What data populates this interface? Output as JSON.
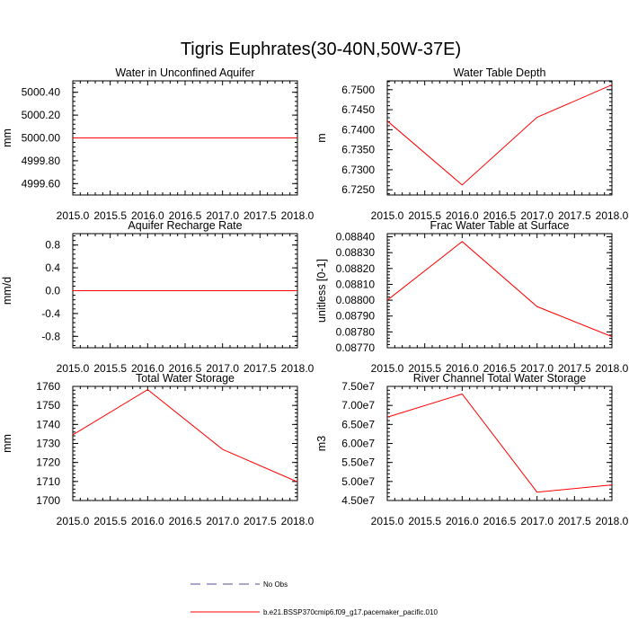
{
  "title": "Tigris Euphrates(30-40N,50W-37E)",
  "chart_data": [
    {
      "type": "line",
      "title": "Water in Unconfined Aquifer",
      "ylabel": "mm",
      "x": [
        2015,
        2016,
        2017,
        2018
      ],
      "series": [
        {
          "name": "b.e21.BSSP370cmip6.f09_g17.pacemaker_pacific.010",
          "values": [
            5000,
            5000,
            5000,
            5000
          ]
        }
      ],
      "xlim": [
        2015,
        2018
      ],
      "ylim": [
        4999.5,
        5000.5
      ],
      "xticks": [
        "2015.0",
        "2015.5",
        "2016.0",
        "2016.5",
        "2017.0",
        "2017.5",
        "2018.0"
      ],
      "yticks": [
        {
          "v": 4999.6,
          "label": "4999.60"
        },
        {
          "v": 4999.8,
          "label": "4999.80"
        },
        {
          "v": 5000.0,
          "label": "5000.00"
        },
        {
          "v": 5000.2,
          "label": "5000.20"
        },
        {
          "v": 5000.4,
          "label": "5000.40"
        }
      ]
    },
    {
      "type": "line",
      "title": "Water Table Depth",
      "ylabel": "m",
      "x": [
        2015,
        2016,
        2017,
        2018
      ],
      "series": [
        {
          "name": "b.e21.BSSP370cmip6.f09_g17.pacemaker_pacific.010",
          "values": [
            6.7422,
            6.7262,
            6.7431,
            6.7512
          ]
        }
      ],
      "xlim": [
        2015,
        2018
      ],
      "ylim": [
        6.7237,
        6.7522
      ],
      "xticks": [
        "2015.0",
        "2015.5",
        "2016.0",
        "2016.5",
        "2017.0",
        "2017.5",
        "2018.0"
      ],
      "yticks": [
        {
          "v": 6.725,
          "label": "6.7250"
        },
        {
          "v": 6.73,
          "label": "6.7300"
        },
        {
          "v": 6.735,
          "label": "6.7350"
        },
        {
          "v": 6.74,
          "label": "6.7400"
        },
        {
          "v": 6.745,
          "label": "6.7450"
        },
        {
          "v": 6.75,
          "label": "6.7500"
        }
      ]
    },
    {
      "type": "line",
      "title": "Aquifer Recharge Rate",
      "ylabel": "mm/d",
      "x": [
        2015,
        2016,
        2017,
        2018
      ],
      "series": [
        {
          "name": "b.e21.BSSP370cmip6.f09_g17.pacemaker_pacific.010",
          "values": [
            0,
            0,
            0,
            0
          ]
        }
      ],
      "xlim": [
        2015,
        2018
      ],
      "ylim": [
        -1,
        1
      ],
      "xticks": [
        "2015.0",
        "2015.5",
        "2016.0",
        "2016.5",
        "2017.0",
        "2017.5",
        "2018.0"
      ],
      "yticks": [
        {
          "v": -0.8,
          "label": "-0.8"
        },
        {
          "v": -0.4,
          "label": "-0.4"
        },
        {
          "v": 0,
          "label": "0.0"
        },
        {
          "v": 0.4,
          "label": "0.4"
        },
        {
          "v": 0.8,
          "label": "0.8"
        }
      ]
    },
    {
      "type": "line",
      "title": "Frac Water Table at Surface",
      "ylabel": "unitless [0-1]",
      "x": [
        2015,
        2016,
        2017,
        2018
      ],
      "series": [
        {
          "name": "b.e21.BSSP370cmip6.f09_g17.pacemaker_pacific.010",
          "values": [
            0.088,
            0.08837,
            0.08796,
            0.08777
          ]
        }
      ],
      "xlim": [
        2015,
        2018
      ],
      "ylim": [
        0.0877,
        0.08842
      ],
      "xticks": [
        "2015.0",
        "2015.5",
        "2016.0",
        "2016.5",
        "2017.0",
        "2017.5",
        "2018.0"
      ],
      "yticks": [
        {
          "v": 0.0877,
          "label": "0.08770"
        },
        {
          "v": 0.0878,
          "label": "0.08780"
        },
        {
          "v": 0.0879,
          "label": "0.08790"
        },
        {
          "v": 0.088,
          "label": "0.08800"
        },
        {
          "v": 0.0881,
          "label": "0.08810"
        },
        {
          "v": 0.0882,
          "label": "0.08820"
        },
        {
          "v": 0.0883,
          "label": "0.08830"
        },
        {
          "v": 0.0884,
          "label": "0.08840"
        }
      ]
    },
    {
      "type": "line",
      "title": "Total Water Storage",
      "ylabel": "mm",
      "x": [
        2015,
        2016,
        2017,
        2018
      ],
      "series": [
        {
          "name": "b.e21.BSSP370cmip6.f09_g17.pacemaker_pacific.010",
          "values": [
            1734.5,
            1758.3,
            1726.9,
            1709.8
          ]
        }
      ],
      "xlim": [
        2015,
        2018
      ],
      "ylim": [
        1700,
        1760
      ],
      "xticks": [
        "2015.0",
        "2015.5",
        "2016.0",
        "2016.5",
        "2017.0",
        "2017.5",
        "2018.0"
      ],
      "yticks": [
        {
          "v": 1700,
          "label": "1700"
        },
        {
          "v": 1710,
          "label": "1710"
        },
        {
          "v": 1720,
          "label": "1720"
        },
        {
          "v": 1730,
          "label": "1730"
        },
        {
          "v": 1740,
          "label": "1740"
        },
        {
          "v": 1750,
          "label": "1750"
        },
        {
          "v": 1760,
          "label": "1760"
        }
      ]
    },
    {
      "type": "line",
      "title": "River Channel Total Water Storage",
      "ylabel": "m3",
      "x": [
        2015,
        2016,
        2017,
        2018
      ],
      "series": [
        {
          "name": "b.e21.BSSP370cmip6.f09_g17.pacemaker_pacific.010",
          "values": [
            66900000,
            73000000,
            47200000,
            49100000
          ]
        }
      ],
      "xlim": [
        2015,
        2018
      ],
      "ylim": [
        45000000,
        75000000
      ],
      "xticks": [
        "2015.0",
        "2015.5",
        "2016.0",
        "2016.5",
        "2017.0",
        "2017.5",
        "2018.0"
      ],
      "yticks": [
        {
          "v": 45000000,
          "label": "4.50e7"
        },
        {
          "v": 50000000,
          "label": "5.00e7"
        },
        {
          "v": 55000000,
          "label": "5.50e7"
        },
        {
          "v": 60000000,
          "label": "6.00e7"
        },
        {
          "v": 65000000,
          "label": "6.50e7"
        },
        {
          "v": 70000000,
          "label": "7.00e7"
        },
        {
          "v": 75000000,
          "label": "7.50e7"
        }
      ]
    }
  ],
  "legend": {
    "placement": "bottom-center",
    "items": [
      {
        "label": "No Obs",
        "color": "#5b4b9a",
        "style": "dashed"
      },
      {
        "label": "b.e21.BSSP370cmip6.f09_g17.pacemaker_pacific.010",
        "color": "#ff0000",
        "style": "solid"
      }
    ]
  },
  "colors": {
    "series": "#ff0000",
    "axis": "#000000"
  }
}
